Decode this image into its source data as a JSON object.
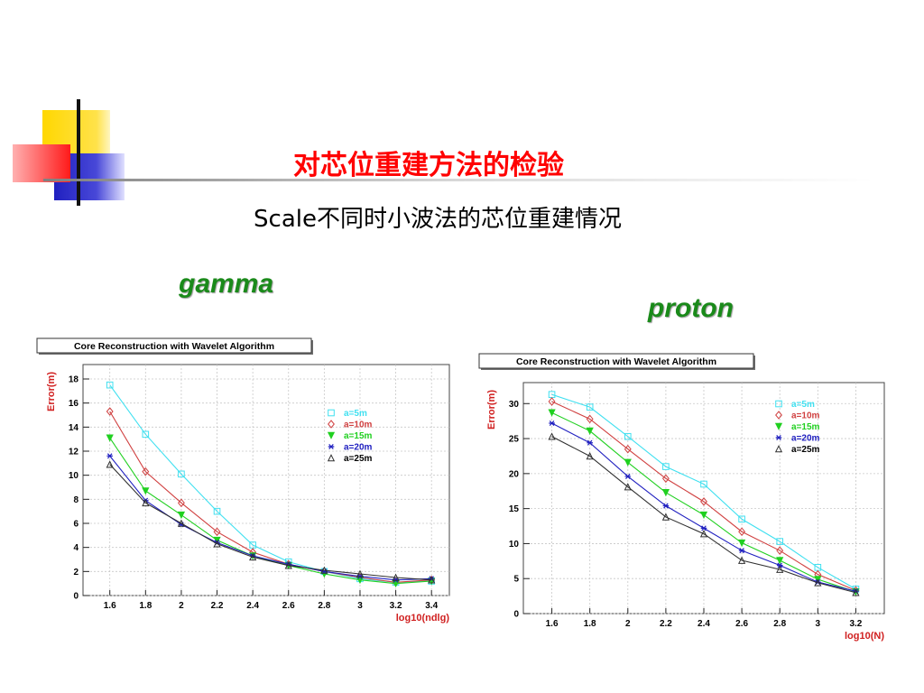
{
  "slide": {
    "title": "对芯位重建方法的检验",
    "subtitle": "Scale不同时小波法的芯位重建情况"
  },
  "colors": {
    "title": "#ff0000",
    "panel_label": "#1a8a1a",
    "axis_label": "#d02020",
    "series": [
      "#40e0f0",
      "#d04040",
      "#20d020",
      "#2020c0",
      "#303030"
    ],
    "deco_yellow": "#ffd700",
    "deco_blue": "#2828c8",
    "deco_red": "#ff2a2a"
  },
  "panels": [
    {
      "label": "gamma"
    },
    {
      "label": "proton"
    }
  ],
  "chart_data": [
    {
      "type": "line",
      "panel": "gamma",
      "title": "Core Reconstruction with Wavelet Algorithm",
      "xlabel": "log10(ndlg)",
      "ylabel": "Error(m)",
      "xlim": [
        1.45,
        3.5
      ],
      "ylim": [
        0,
        19.2
      ],
      "xticks": [
        "1.6",
        "1.8",
        "2",
        "2.2",
        "2.4",
        "2.6",
        "2.8",
        "3",
        "3.2",
        "3.4"
      ],
      "yticks": [
        "0",
        "2",
        "4",
        "6",
        "8",
        "10",
        "12",
        "14",
        "16",
        "18"
      ],
      "grid": true,
      "legend_position": "top-right",
      "x": [
        1.6,
        1.8,
        2.0,
        2.2,
        2.4,
        2.6,
        2.8,
        3.0,
        3.2,
        3.4
      ],
      "series": [
        {
          "name": "a=5m",
          "marker": "square",
          "values": [
            17.5,
            13.4,
            10.1,
            7.0,
            4.2,
            2.8,
            2.0,
            1.4,
            1.1,
            1.2
          ]
        },
        {
          "name": "a=10m",
          "marker": "diamond",
          "values": [
            15.3,
            10.3,
            7.7,
            5.3,
            3.6,
            2.6,
            2.0,
            1.5,
            1.1,
            1.3
          ]
        },
        {
          "name": "a=15m",
          "marker": "triangle-down",
          "values": [
            13.1,
            8.7,
            6.7,
            4.6,
            3.3,
            2.5,
            1.8,
            1.3,
            1.0,
            1.2
          ]
        },
        {
          "name": "a=20m",
          "marker": "asterisk",
          "values": [
            11.6,
            7.9,
            5.9,
            4.4,
            3.3,
            2.6,
            2.0,
            1.6,
            1.3,
            1.4
          ]
        },
        {
          "name": "a=25m",
          "marker": "triangle-up",
          "values": [
            10.9,
            7.7,
            6.0,
            4.3,
            3.2,
            2.5,
            2.1,
            1.8,
            1.5,
            1.3
          ]
        }
      ]
    },
    {
      "type": "line",
      "panel": "proton",
      "title": "Core Reconstruction with Wavelet Algorithm",
      "xlabel": "log10(N)",
      "ylabel": "Error(m)",
      "xlim": [
        1.45,
        3.35
      ],
      "ylim": [
        0,
        33
      ],
      "xticks": [
        "1.6",
        "1.8",
        "2",
        "2.2",
        "2.4",
        "2.6",
        "2.8",
        "3",
        "3.2"
      ],
      "yticks": [
        "0",
        "5",
        "10",
        "15",
        "20",
        "25",
        "30"
      ],
      "grid": true,
      "legend_position": "top-right",
      "x": [
        1.6,
        1.8,
        2.0,
        2.2,
        2.4,
        2.6,
        2.8,
        3.0,
        3.2
      ],
      "series": [
        {
          "name": "a=5m",
          "marker": "square",
          "values": [
            31.3,
            29.5,
            25.3,
            21.0,
            18.5,
            13.5,
            10.3,
            6.6,
            3.5
          ]
        },
        {
          "name": "a=10m",
          "marker": "diamond",
          "values": [
            30.3,
            27.8,
            23.5,
            19.3,
            16.0,
            11.7,
            9.0,
            5.6,
            3.3
          ]
        },
        {
          "name": "a=15m",
          "marker": "triangle-down",
          "values": [
            28.7,
            26.1,
            21.6,
            17.3,
            14.1,
            10.1,
            7.6,
            4.9,
            3.1
          ]
        },
        {
          "name": "a=20m",
          "marker": "asterisk",
          "values": [
            27.2,
            24.4,
            19.6,
            15.4,
            12.2,
            9.0,
            6.9,
            4.5,
            3.2
          ]
        },
        {
          "name": "a=25m",
          "marker": "triangle-up",
          "values": [
            25.3,
            22.5,
            18.1,
            13.8,
            11.4,
            7.6,
            6.3,
            4.4,
            3.0
          ]
        }
      ]
    }
  ]
}
